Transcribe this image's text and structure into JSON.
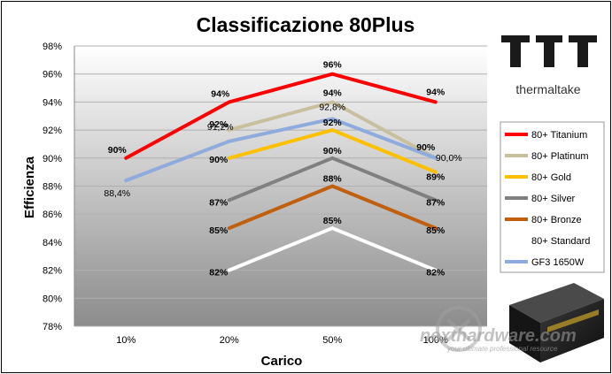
{
  "chart_data": {
    "type": "line",
    "title": "Classificazione 80Plus",
    "xlabel": "Carico",
    "ylabel": "Efficienza",
    "categories": [
      "10%",
      "20%",
      "50%",
      "100%"
    ],
    "ylim": [
      78,
      98
    ],
    "yticks": [
      78,
      80,
      82,
      84,
      86,
      88,
      90,
      92,
      94,
      96,
      98
    ],
    "ytick_labels": [
      "78%",
      "80%",
      "82%",
      "84%",
      "86%",
      "88%",
      "90%",
      "92%",
      "94%",
      "96%",
      "98%"
    ],
    "grid": true,
    "legend_position": "right",
    "series": [
      {
        "name": "80+ Titanium",
        "color": "#ff0000",
        "values": [
          90,
          94,
          96,
          94
        ],
        "labels": [
          "90%",
          "94%",
          "96%",
          "94%"
        ]
      },
      {
        "name": "80+ Platinum",
        "color": "#c8bf9f",
        "values": [
          null,
          92,
          94,
          90
        ],
        "labels": [
          "",
          "92%",
          "94%",
          "90%"
        ]
      },
      {
        "name": "80+ Gold",
        "color": "#ffc000",
        "values": [
          null,
          90,
          92,
          89
        ],
        "labels": [
          "",
          "90%",
          "92%",
          "89%"
        ]
      },
      {
        "name": "80+ Silver",
        "color": "#808080",
        "values": [
          null,
          87,
          90,
          87
        ],
        "labels": [
          "",
          "87%",
          "90%",
          "87%"
        ]
      },
      {
        "name": "80+ Bronze",
        "color": "#c0600f",
        "values": [
          null,
          85,
          88,
          85
        ],
        "labels": [
          "",
          "85%",
          "88%",
          "85%"
        ]
      },
      {
        "name": "80+ Standard",
        "color": "#ffffff",
        "values": [
          null,
          82,
          85,
          82
        ],
        "labels": [
          "",
          "82%",
          "85%",
          "82%"
        ]
      },
      {
        "name": "GF3 1650W",
        "color": "#8faadc",
        "values": [
          88.4,
          91.2,
          92.8,
          90.0
        ],
        "labels": [
          "88,4%",
          "91,2%",
          "92,8%",
          "90,0%"
        ]
      }
    ]
  },
  "brand": {
    "name": "thermaltake",
    "logo_icon": "thermaltake-tt-logo",
    "product_image": "psu-product-image-icon",
    "watermark": "nexthardware.com",
    "watermark_tagline": "your ultimate professional resource"
  }
}
